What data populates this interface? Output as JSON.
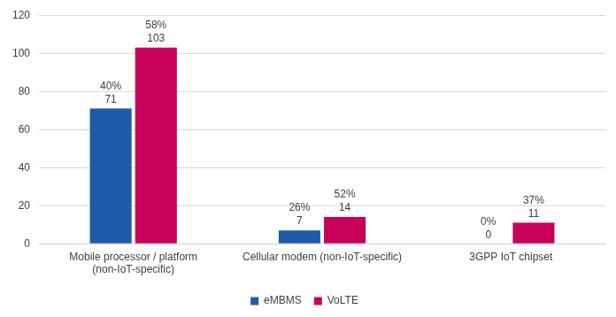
{
  "chart_data": {
    "type": "bar",
    "categories": [
      "Mobile processor / platform (non-IoT-specific)",
      "Cellular modem (non-IoT-specific)",
      "3GPP IoT chipset"
    ],
    "series": [
      {
        "name": "eMBMS",
        "color": "#1c5ba8",
        "values": [
          71,
          7,
          0
        ],
        "share_labels": [
          "40%",
          "26%",
          "0%"
        ]
      },
      {
        "name": "VoLTE",
        "color": "#c8005a",
        "values": [
          103,
          14,
          11
        ],
        "share_labels": [
          "58%",
          "52%",
          "37%"
        ]
      }
    ],
    "ylim": [
      0,
      120
    ],
    "yticks": [
      0,
      20,
      40,
      60,
      80,
      100,
      120
    ],
    "grid": true,
    "legend": "bottom",
    "data_labels": true
  }
}
